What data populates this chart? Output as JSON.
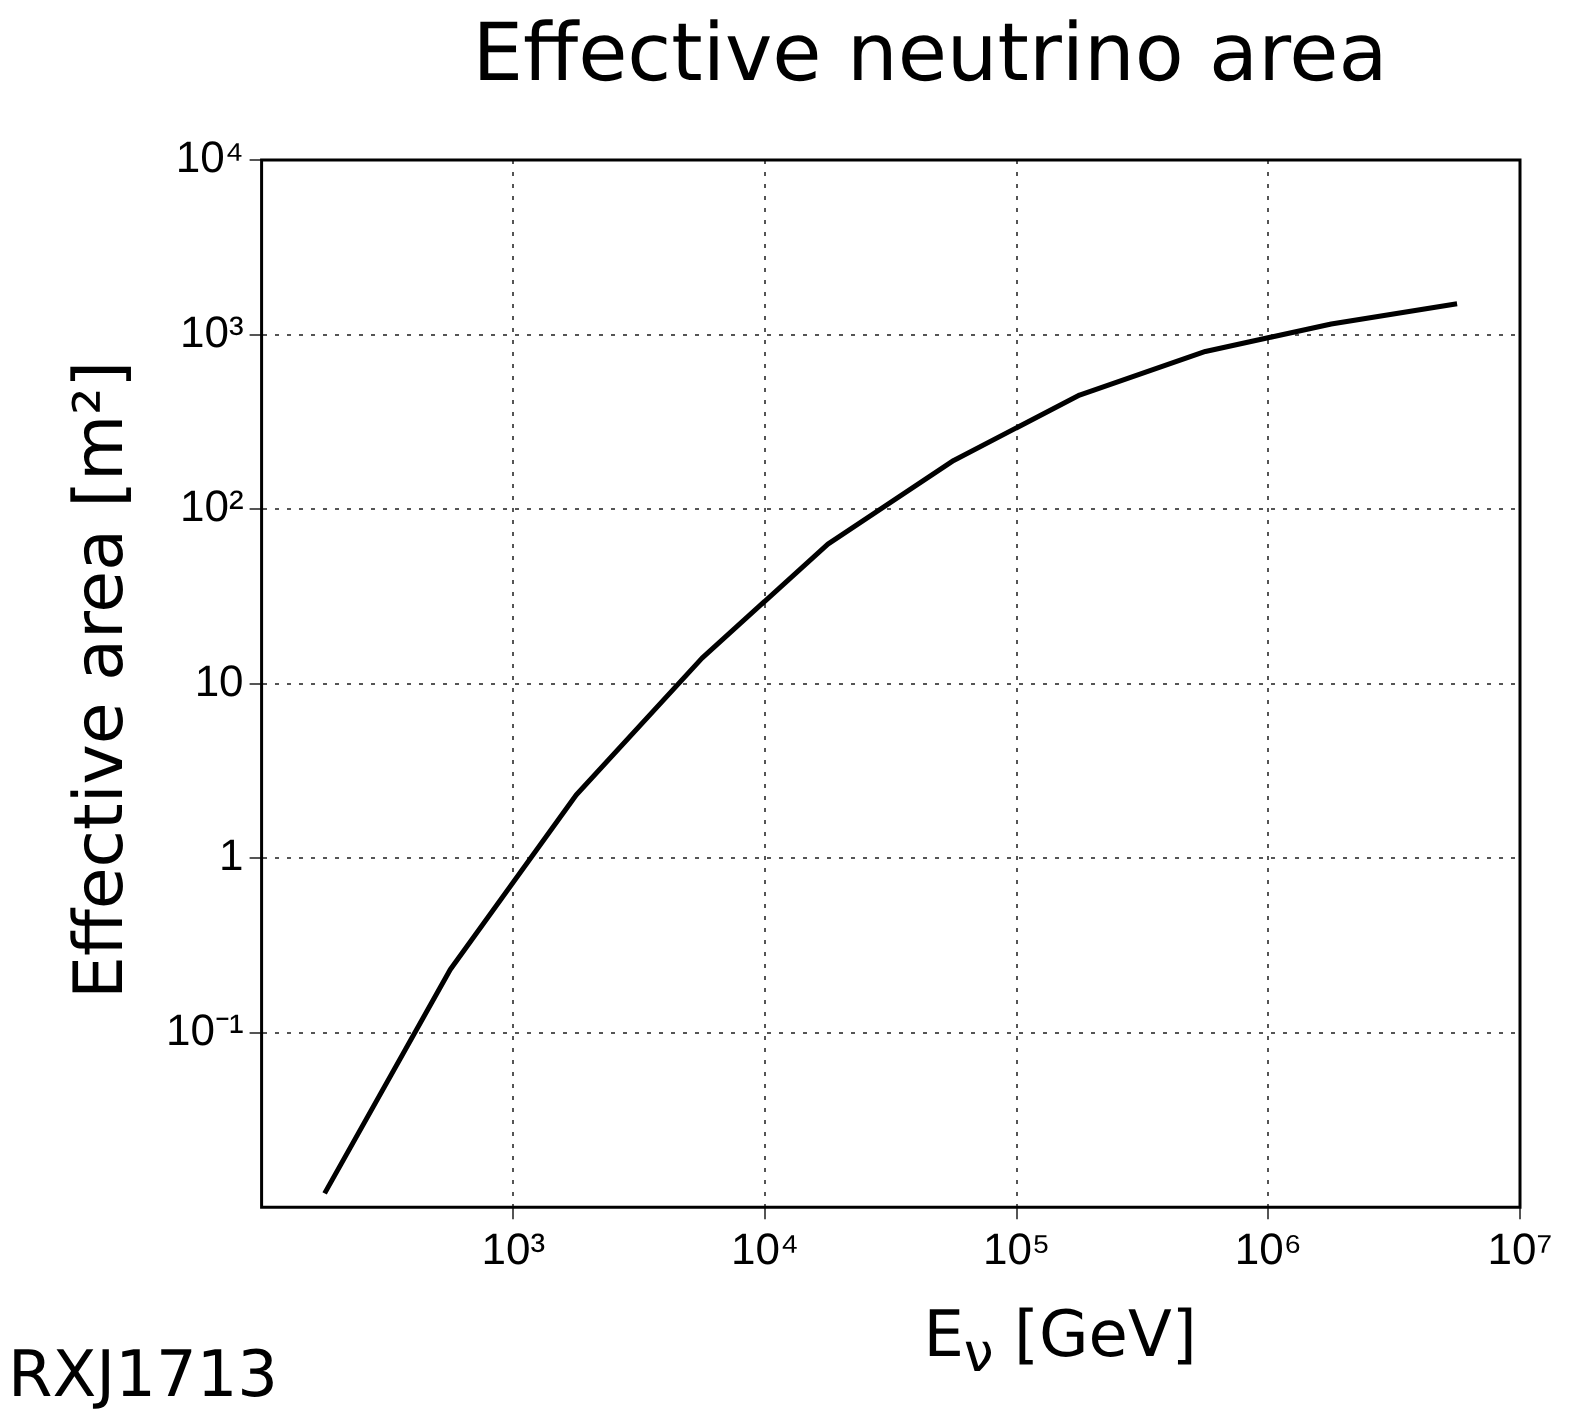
{
  "chart_data": {
    "type": "line",
    "title": "Effective neutrino area",
    "xlabel": "E$_{ν}$ [GeV]",
    "ylabel": "Effective area [m²]",
    "annotations": [
      "RXJ1713"
    ],
    "x": [
      178,
      562,
      1778,
      5623,
      17783,
      56234,
      177828,
      562341,
      1778279,
      5623413
    ],
    "series": [
      {
        "color": "#000000",
        "values": [
          0.012,
          0.23,
          2.3,
          14,
          63,
          190,
          450,
          800,
          1150,
          1500
        ]
      }
    ],
    "log": "xy",
    "xlim": [
      100,
      10000000
    ],
    "ylim": [
      0.01,
      10000
    ],
    "xticks": [
      {
        "value": 1000,
        "label": "10³"
      },
      {
        "value": 10000,
        "label": "10⁴"
      },
      {
        "value": 100000,
        "label": "10⁵"
      },
      {
        "value": 1000000,
        "label": "10⁶"
      },
      {
        "value": 10000000,
        "label": "10⁷"
      }
    ],
    "yticks": [
      {
        "value": 0.1,
        "label": "10⁻¹"
      },
      1,
      10,
      {
        "value": 100,
        "label": "10²"
      },
      {
        "value": 1000,
        "label": "10³"
      },
      {
        "value": 10000,
        "label": "10⁴"
      }
    ],
    "grid": true,
    "legend": false,
    "marker": "none",
    "line_style": "solid"
  }
}
